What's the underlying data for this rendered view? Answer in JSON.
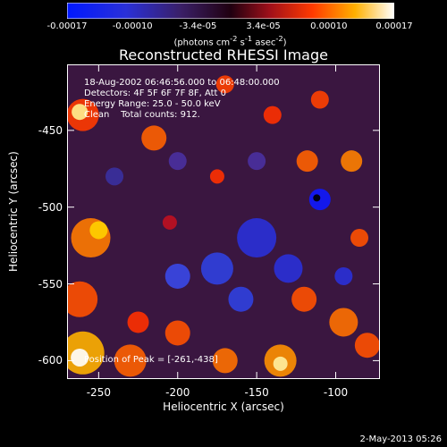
{
  "chart_data": {
    "type": "heatmap",
    "title": "Reconstructed RHESSI Image",
    "xlabel": "Heliocentric X (arcsec)",
    "ylabel": "Heliocentric Y (arcsec)",
    "xlim": [
      -270,
      -72
    ],
    "ylim": [
      -612,
      -407
    ],
    "xticks": [
      "-250",
      "-200",
      "-150",
      "-100"
    ],
    "yticks": [
      "-450",
      "-500",
      "-550",
      "-600"
    ],
    "colorbar": {
      "ticks": [
        "-0.00017",
        "-0.00010",
        "-3.4e-05",
        "3.4e-05",
        "0.00010",
        "0.00017"
      ],
      "units_label": "(photons cm-2 s-1 asec-2)",
      "range": [
        -0.00017,
        0.00017
      ]
    },
    "annotations": [
      "18-Aug-2002 06:46:56.000 to 06:48:00.000",
      "Detectors: 4F 5F 6F 7F 8F, Att 0",
      "Energy Range: 25.0 - 50.0 keV",
      "Clean    Total counts: 912."
    ],
    "peak_label": "Position of Peak = [-261,-438]",
    "colors": {
      "negative": "#1e28ff",
      "mid": "#3a0a50",
      "positive": "#ff3a00",
      "max": "#ffffff"
    }
  },
  "footer": "2-May-2013 05:26"
}
